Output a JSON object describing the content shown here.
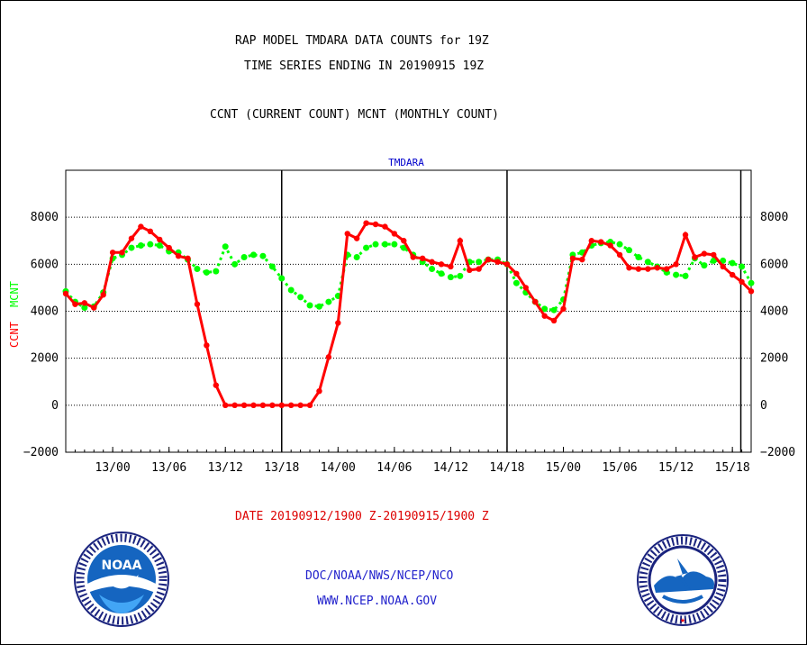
{
  "header": {
    "title_line1": "RAP MODEL TMDARA DATA COUNTS for 19Z",
    "title_line2": "TIME SERIES ENDING IN 20190915 19Z",
    "subtitle": "CCNT (CURRENT COUNT) MCNT (MONTHLY COUNT)"
  },
  "footer": {
    "date_range": "DATE 20190912/1900 Z-20190915/1900 Z",
    "org": "DOC/NOAA/NWS/NCEP/NCO",
    "url": "WWW.NCEP.NOAA.GOV"
  },
  "logos": {
    "noaa_text": "NOAA",
    "nws_text": "NATIONAL WEATHER SERVICE"
  },
  "colors": {
    "ccnt": "#ff0000",
    "mcnt": "#00ff00",
    "label_blue": "#0000cc",
    "date_red": "#dd0000"
  },
  "chart_data": {
    "type": "line",
    "title": "TMDARA",
    "ylabel_left": [
      "CCNT",
      "MCNT"
    ],
    "ylim": [
      -2000,
      10000
    ],
    "yticks": [
      -2000,
      0,
      2000,
      4000,
      6000,
      8000
    ],
    "ytick_labels": [
      "−2000",
      "0",
      "2000",
      "4000",
      "6000",
      "8000"
    ],
    "xlim_hours": [
      0,
      73
    ],
    "xtick_labels": [
      "13/00",
      "13/06",
      "13/12",
      "13/18",
      "14/00",
      "14/06",
      "14/12",
      "14/18",
      "15/00",
      "15/06",
      "15/12",
      "15/18"
    ],
    "day_boundaries_hours": [
      23,
      47,
      71.9
    ],
    "grid": "horizontal-dotted",
    "series": [
      {
        "name": "CCNT",
        "values": [
          4750,
          4300,
          4350,
          4150,
          4700,
          6500,
          6500,
          7100,
          7600,
          7400,
          7050,
          6700,
          6350,
          6250,
          4300,
          2550,
          850,
          0,
          0,
          0,
          0,
          0,
          0,
          0,
          0,
          0,
          0,
          600,
          2050,
          3500,
          7300,
          7100,
          7750,
          7700,
          7600,
          7300,
          7000,
          6300,
          6250,
          6100,
          6000,
          5900,
          7000,
          5750,
          5800,
          6200,
          6100,
          6000,
          5600,
          5000,
          4400,
          3800,
          3600,
          4100,
          6250,
          6200,
          7000,
          6950,
          6800,
          6400,
          5850,
          5800,
          5800,
          5850,
          5800,
          6000,
          7250,
          6300,
          6450,
          6400,
          5900,
          5550,
          5250,
          4850
        ]
      },
      {
        "name": "MCNT",
        "values": [
          4850,
          4400,
          4150,
          4200,
          4800,
          6250,
          6400,
          6700,
          6800,
          6850,
          6800,
          6550,
          6500,
          6200,
          5800,
          5650,
          5700,
          6750,
          6000,
          6300,
          6400,
          6350,
          5900,
          5400,
          4900,
          4600,
          4250,
          4200,
          4400,
          4650,
          6400,
          6300,
          6700,
          6850,
          6850,
          6850,
          6700,
          6400,
          6100,
          5800,
          5600,
          5450,
          5500,
          6100,
          6100,
          6200,
          6200,
          6000,
          5200,
          4800,
          4400,
          4100,
          4050,
          4500,
          6400,
          6500,
          6800,
          6900,
          6950,
          6850,
          6600,
          6300,
          6100,
          5900,
          5650,
          5550,
          5500,
          6250,
          5950,
          6150,
          6150,
          6050,
          5900,
          5200
        ]
      }
    ]
  }
}
